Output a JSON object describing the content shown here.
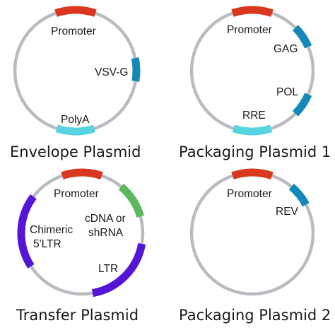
{
  "colors": {
    "ring": "#b8bcc0",
    "red": "#d9381e",
    "blue": "#1489b8",
    "cyan": "#5ad3e0",
    "green": "#5cb85c",
    "purple": "#5514d6"
  },
  "plasmids": [
    {
      "id": "envelope",
      "title": "Envelope Plasmid",
      "segments": [
        {
          "label": "Promoter",
          "color": "red"
        },
        {
          "label": "VSV-G",
          "color": "blue"
        },
        {
          "label": "PolyA",
          "color": "cyan"
        }
      ]
    },
    {
      "id": "packaging1",
      "title": "Packaging Plasmid 1",
      "segments": [
        {
          "label": "Promoter",
          "color": "red"
        },
        {
          "label": "GAG",
          "color": "blue"
        },
        {
          "label": "POL",
          "color": "blue"
        },
        {
          "label": "RRE",
          "color": "cyan"
        }
      ]
    },
    {
      "id": "transfer",
      "title": "Transfer Plasmid",
      "segments": [
        {
          "label": "Promoter",
          "color": "red"
        },
        {
          "label": "cDNA or",
          "label2": "shRNA",
          "color": "green"
        },
        {
          "label": "LTR",
          "color": "purple"
        },
        {
          "label": "Chimeric",
          "label2": "5'LTR",
          "color": "purple"
        }
      ]
    },
    {
      "id": "packaging2",
      "title": "Packaging Plasmid 2",
      "segments": [
        {
          "label": "Promoter",
          "color": "red"
        },
        {
          "label": "REV",
          "color": "blue"
        }
      ]
    }
  ]
}
